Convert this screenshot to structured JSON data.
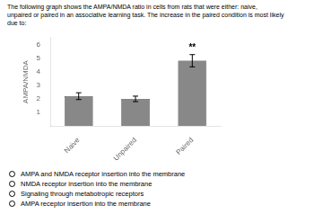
{
  "chart_data": {
    "type": "bar",
    "title": "The following graph shows the AMPA/NMDA ratio in cells from rats that were either: naive,\nunpaired or paired in an associative learning task. The increase in the paired condition is most likely\ndue to:",
    "categories": [
      "Naive",
      "Unpaired",
      "Paired"
    ],
    "values": [
      2.2,
      2.0,
      4.8
    ],
    "errors": [
      0.25,
      0.2,
      0.45
    ],
    "color": "#888888",
    "ylabel": "AMPA/NMDA",
    "ylim": [
      0,
      6.5
    ],
    "yticks": [
      1,
      2,
      3,
      4,
      5,
      6
    ],
    "grid": false,
    "annotations": [
      {
        "text": "**",
        "category": "Paired"
      }
    ],
    "options": [
      "AMPA and NMDA receptor insertion into the membrane",
      "NMDA receptor insertion into the membrane",
      "Signaling through metabotropic receptors",
      "AMPA receptor insertion into the membrane"
    ]
  }
}
